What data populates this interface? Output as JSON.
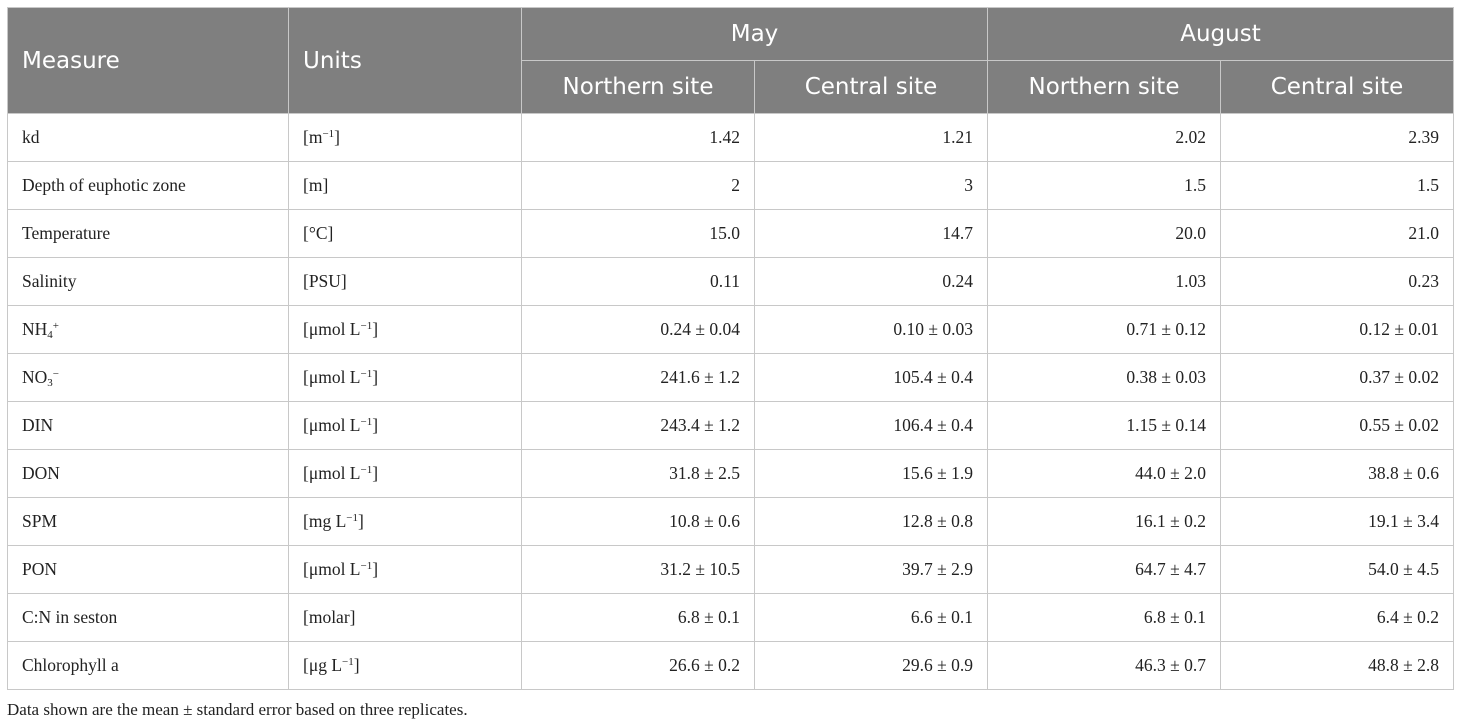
{
  "header": {
    "measure": "Measure",
    "units": "Units",
    "may": "May",
    "august": "August",
    "sites": [
      "Northern site",
      "Central site",
      "Northern site",
      "Central site"
    ]
  },
  "rows": [
    {
      "measure": "kd",
      "u_pre": "[m",
      "u_sup": "−1",
      "u_post": "]",
      "values": [
        "1.42",
        "1.21",
        "2.02",
        "2.39"
      ]
    },
    {
      "measure": "Depth of euphotic zone",
      "u_pre": "[m]",
      "values": [
        "2",
        "3",
        "1.5",
        "1.5"
      ]
    },
    {
      "measure": "Temperature",
      "u_pre": "[°C]",
      "values": [
        "15.0",
        "14.7",
        "20.0",
        "21.0"
      ]
    },
    {
      "measure": "Salinity",
      "u_pre": "[PSU]",
      "values": [
        "0.11",
        "0.24",
        "1.03",
        "0.23"
      ]
    },
    {
      "measure": "NH",
      "m_sub": "4",
      "m_sup": "+",
      "u_pre": "[μmol L",
      "u_sup": "−1",
      "u_post": "]",
      "values": [
        "0.24 ± 0.04",
        "0.10 ± 0.03",
        "0.71 ± 0.12",
        "0.12 ± 0.01"
      ]
    },
    {
      "measure": "NO",
      "m_sub": "3",
      "m_sup": "−",
      "u_pre": "[μmol L",
      "u_sup": "−1",
      "u_post": "]",
      "values": [
        "241.6 ± 1.2",
        "105.4 ± 0.4",
        "0.38 ± 0.03",
        "0.37 ± 0.02"
      ]
    },
    {
      "measure": "DIN",
      "u_pre": "[μmol L",
      "u_sup": "−1",
      "u_post": "]",
      "values": [
        "243.4 ± 1.2",
        "106.4 ± 0.4",
        "1.15 ± 0.14",
        "0.55 ± 0.02"
      ]
    },
    {
      "measure": "DON",
      "u_pre": "[μmol L",
      "u_sup": "−1",
      "u_post": "]",
      "values": [
        "31.8 ± 2.5",
        "15.6 ± 1.9",
        "44.0 ± 2.0",
        "38.8 ± 0.6"
      ]
    },
    {
      "measure": "SPM",
      "u_pre": "[mg L",
      "u_sup": "−1",
      "u_post": "]",
      "values": [
        "10.8 ± 0.6",
        "12.8 ± 0.8",
        "16.1 ± 0.2",
        "19.1 ± 3.4"
      ]
    },
    {
      "measure": "PON",
      "u_pre": "[μmol L",
      "u_sup": "−1",
      "u_post": "]",
      "values": [
        "31.2 ± 10.5",
        "39.7 ± 2.9",
        "64.7 ± 4.7",
        "54.0 ± 4.5"
      ]
    },
    {
      "measure": "C:N in seston",
      "u_pre": "[molar]",
      "values": [
        "6.8 ± 0.1",
        "6.6 ± 0.1",
        "6.8 ± 0.1",
        "6.4 ± 0.2"
      ]
    },
    {
      "measure": "Chlorophyll a",
      "u_pre": "[μg L",
      "u_sup": "−1",
      "u_post": "]",
      "values": [
        "26.6 ± 0.2",
        "29.6 ± 0.9",
        "46.3 ± 0.7",
        "48.8 ± 2.8"
      ]
    }
  ],
  "footnote": "Data shown are the mean ± standard error based on three replicates."
}
